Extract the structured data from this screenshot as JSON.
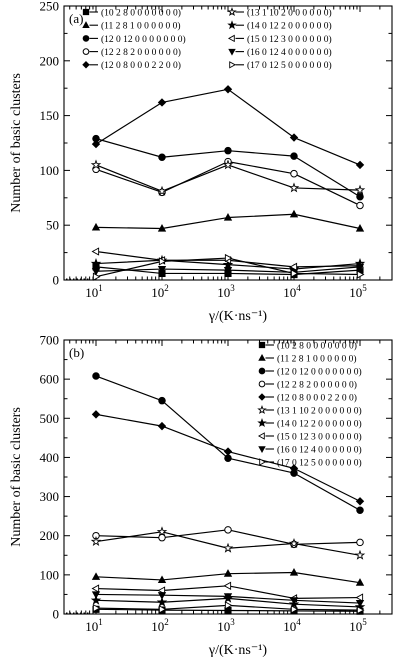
{
  "chart_data": [
    {
      "type": "line",
      "panel_label": "(a)",
      "xlabel": "γ/(K·ns⁻¹)",
      "ylabel": "Number of basic clusters",
      "x": [
        10,
        100,
        1000,
        10000,
        100000
      ],
      "x_tick_labels": [
        {
          "base": "10",
          "exp": "1"
        },
        {
          "base": "10",
          "exp": "2"
        },
        {
          "base": "10",
          "exp": "3"
        },
        {
          "base": "10",
          "exp": "4"
        },
        {
          "base": "10",
          "exp": "5"
        }
      ],
      "x_scale": "log",
      "ylim": [
        0,
        250
      ],
      "y_ticks": [
        0,
        50,
        100,
        150,
        200,
        250
      ],
      "legend_position": "top",
      "series": [
        {
          "name": "(10 2 8 0 0 0 0 0 0 0)",
          "marker": "filled-square",
          "values": [
            12,
            6,
            6,
            5,
            9
          ]
        },
        {
          "name": "(11 2 8 1 0 0 0 0 0 0)",
          "marker": "filled-triangle-up",
          "values": [
            48,
            47,
            57,
            60,
            47
          ]
        },
        {
          "name": "(12 0 12 0 0 0 0 0 0 0)",
          "marker": "filled-circle",
          "values": [
            129,
            112,
            118,
            113,
            76
          ]
        },
        {
          "name": "(12 2 8 2 0 0 0 0 0 0)",
          "marker": "open-circle",
          "values": [
            101,
            80,
            108,
            97,
            68
          ]
        },
        {
          "name": "(12 0 8 0 0 0 2 2 0 0)",
          "marker": "filled-diamond",
          "values": [
            124,
            162,
            174,
            130,
            105
          ]
        },
        {
          "name": "(13 1 10 2 0 0 0 0 0 0)",
          "marker": "open-star",
          "values": [
            105,
            81,
            105,
            84,
            82
          ]
        },
        {
          "name": "(14 0 12 2 0 0 0 0 0 0)",
          "marker": "filled-star",
          "values": [
            15,
            18,
            14,
            10,
            15
          ]
        },
        {
          "name": "(15 0 12 3 0 0 0 0 0 0)",
          "marker": "open-triangle-left",
          "values": [
            26,
            18,
            18,
            12,
            13
          ]
        },
        {
          "name": "(16 0 12 4 0 0 0 0 0 0)",
          "marker": "filled-triangle-down",
          "values": [
            8,
            10,
            9,
            7,
            12
          ]
        },
        {
          "name": "(17 0 12 5 0 0 0 0 0 0)",
          "marker": "open-triangle-right",
          "values": [
            3,
            17,
            20,
            6,
            5
          ]
        }
      ]
    },
    {
      "type": "line",
      "panel_label": "(b)",
      "xlabel": "γ/(K·ns⁻¹)",
      "ylabel": "Number of basic clusters",
      "x": [
        10,
        100,
        1000,
        10000,
        100000
      ],
      "x_tick_labels": [
        {
          "base": "10",
          "exp": "1"
        },
        {
          "base": "10",
          "exp": "2"
        },
        {
          "base": "10",
          "exp": "3"
        },
        {
          "base": "10",
          "exp": "4"
        },
        {
          "base": "10",
          "exp": "5"
        }
      ],
      "x_scale": "log",
      "ylim": [
        0,
        700
      ],
      "y_ticks": [
        0,
        100,
        200,
        300,
        400,
        500,
        600,
        700
      ],
      "legend_position": "top-right",
      "series": [
        {
          "name": "(10 2 8 0 0 0 0 0 0 0)",
          "marker": "filled-square",
          "values": [
            12,
            10,
            9,
            8,
            7
          ]
        },
        {
          "name": "(11 2 8 1 0 0 0 0 0 0)",
          "marker": "filled-triangle-up",
          "values": [
            95,
            87,
            103,
            106,
            80
          ]
        },
        {
          "name": "(12 0 12 0 0 0 0 0 0 0)",
          "marker": "filled-circle",
          "values": [
            608,
            545,
            398,
            360,
            265
          ]
        },
        {
          "name": "(12 2 8 2 0 0 0 0 0 0)",
          "marker": "open-circle",
          "values": [
            200,
            195,
            215,
            178,
            183
          ]
        },
        {
          "name": "(12 0 8 0 0 0 2 2 0 0)",
          "marker": "filled-diamond",
          "values": [
            510,
            480,
            415,
            372,
            288
          ]
        },
        {
          "name": "(13 1 10 2 0 0 0 0 0 0)",
          "marker": "open-star",
          "values": [
            185,
            210,
            168,
            180,
            150
          ]
        },
        {
          "name": "(14 0 12 2 0 0 0 0 0 0)",
          "marker": "filled-star",
          "values": [
            35,
            30,
            40,
            25,
            18
          ]
        },
        {
          "name": "(15 0 12 3 0 0 0 0 0 0)",
          "marker": "open-triangle-left",
          "values": [
            65,
            60,
            72,
            40,
            42
          ]
        },
        {
          "name": "(16 0 12 4 0 0 0 0 0 0)",
          "marker": "filled-triangle-down",
          "values": [
            50,
            48,
            45,
            35,
            28
          ]
        },
        {
          "name": "(17 0 12 5 0 0 0 0 0 0)",
          "marker": "open-triangle-right",
          "values": [
            15,
            12,
            22,
            12,
            10
          ]
        }
      ]
    }
  ]
}
